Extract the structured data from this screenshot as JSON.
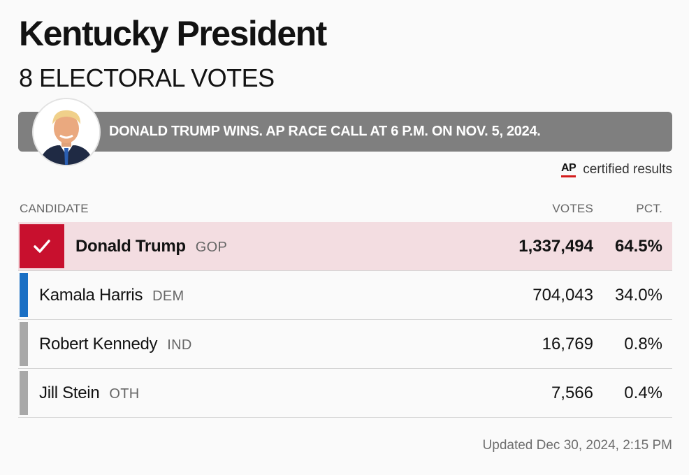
{
  "header": {
    "title": "Kentucky President",
    "subtitle": "8 ELECTORAL VOTES"
  },
  "banner": {
    "text": "DONALD TRUMP WINS. AP RACE CALL AT 6 P.M. ON NOV. 5, 2024."
  },
  "source": {
    "logo": "AP",
    "text": "certified results"
  },
  "table": {
    "columns": {
      "candidate": "CANDIDATE",
      "votes": "VOTES",
      "pct": "PCT."
    },
    "rows": [
      {
        "name": "Donald Trump",
        "party": "GOP",
        "votes": "1,337,494",
        "pct": "64.5%",
        "winner": true,
        "color": "#c8102e"
      },
      {
        "name": "Kamala Harris",
        "party": "DEM",
        "votes": "704,043",
        "pct": "34.0%",
        "winner": false,
        "color": "#1a6fc4"
      },
      {
        "name": "Robert Kennedy",
        "party": "IND",
        "votes": "16,769",
        "pct": "0.8%",
        "winner": false,
        "color": "#a8a8a8"
      },
      {
        "name": "Jill Stein",
        "party": "OTH",
        "votes": "7,566",
        "pct": "0.4%",
        "winner": false,
        "color": "#a8a8a8"
      }
    ]
  },
  "footer": {
    "updated": "Updated Dec 30, 2024, 2:15 PM"
  }
}
